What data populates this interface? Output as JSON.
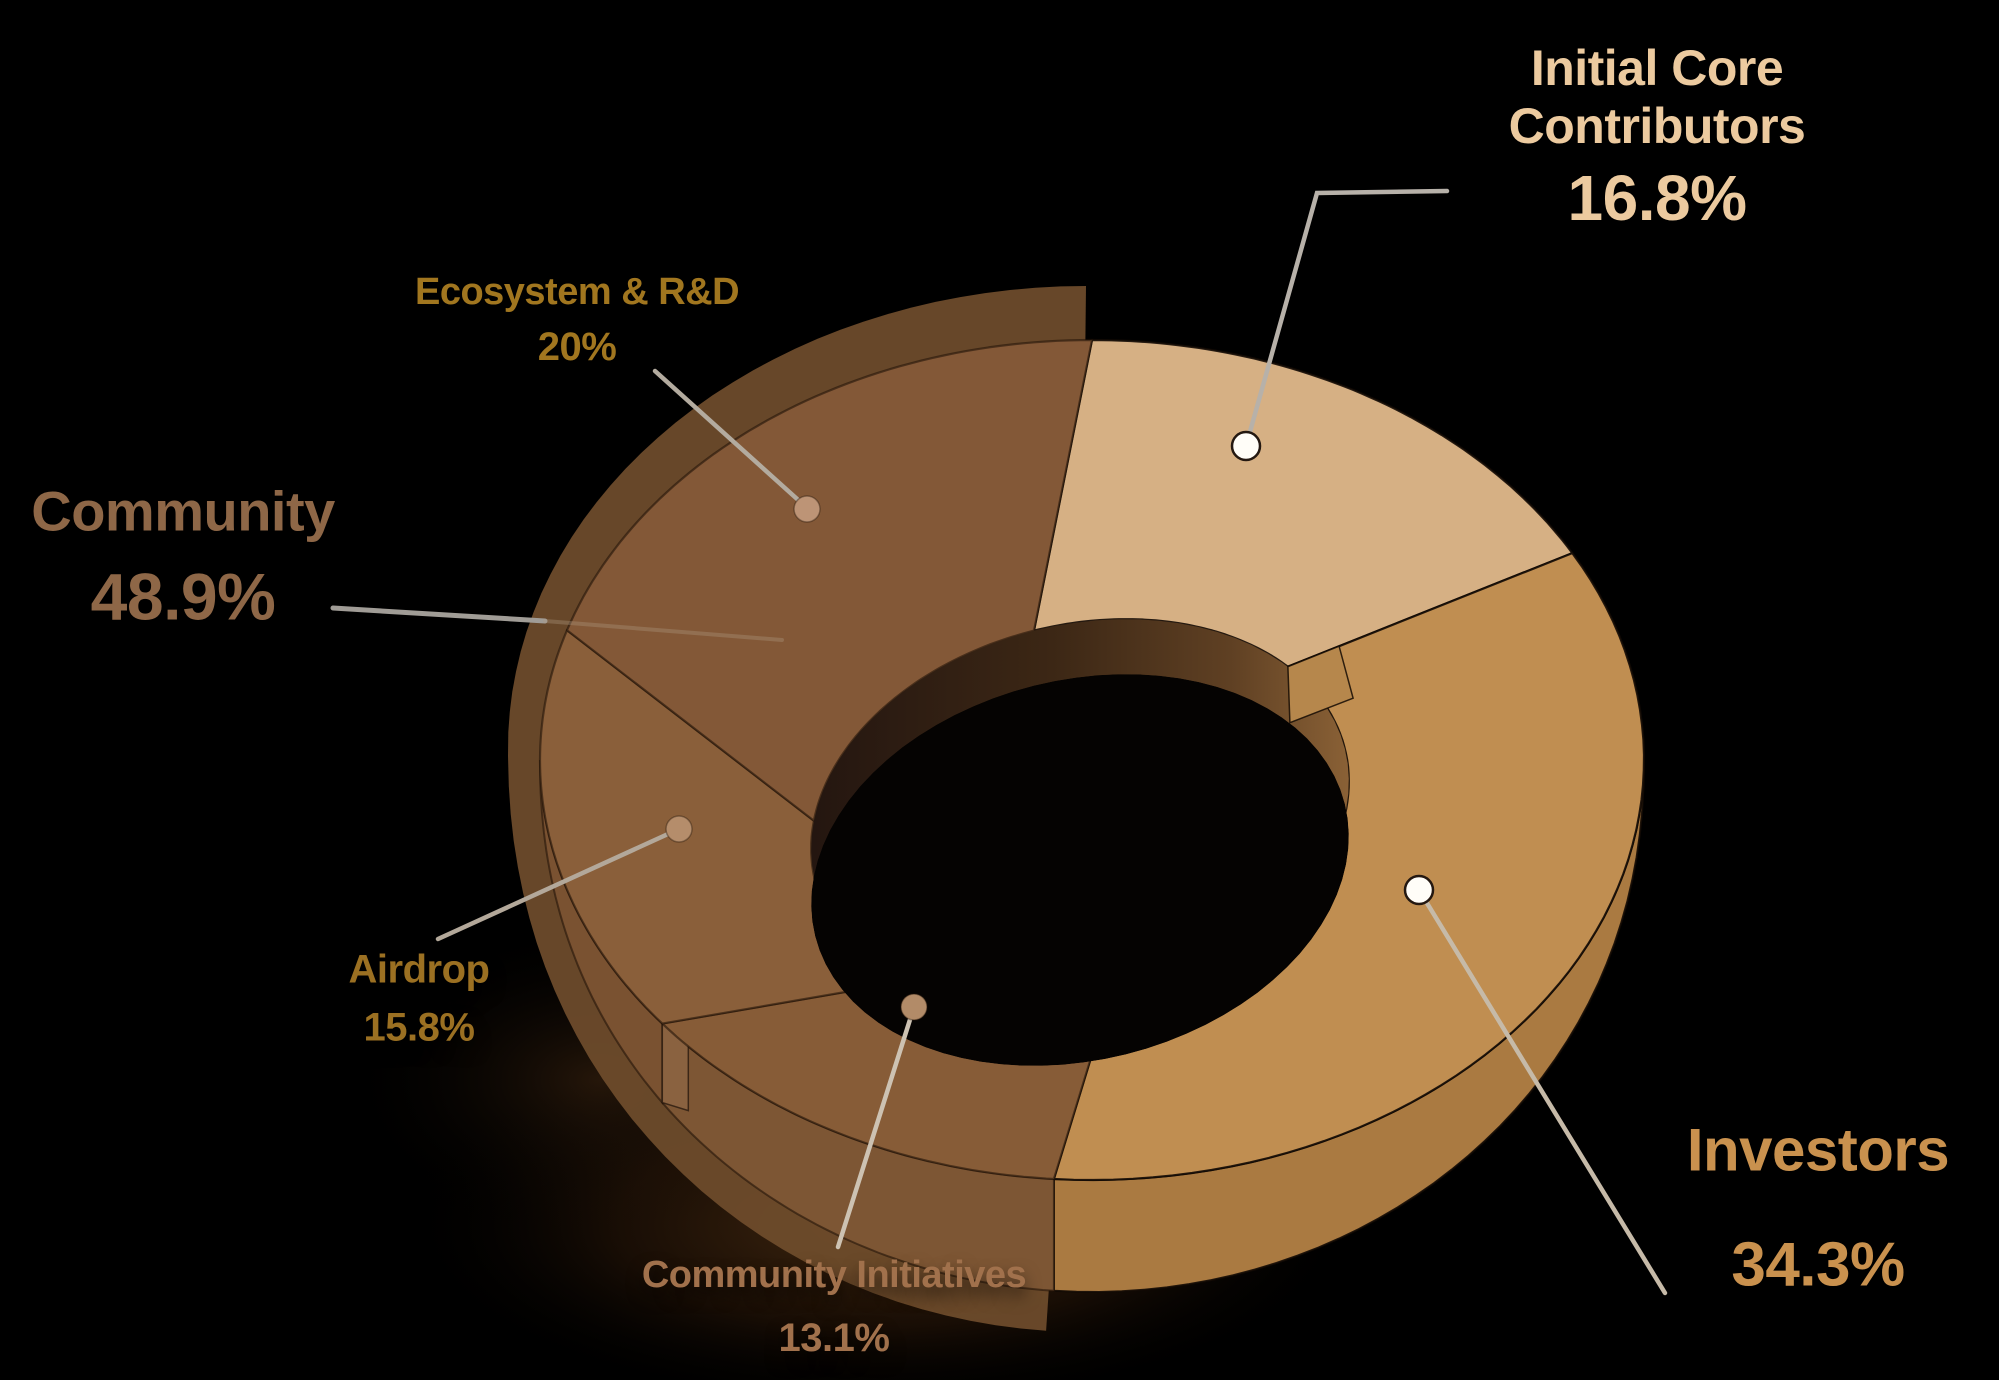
{
  "page": {
    "background": "#000000"
  },
  "chart_data": {
    "type": "pie",
    "variant": "3d-donut",
    "title": "",
    "direction": "clockwise",
    "start_angle_deg": 0,
    "background": "#000000",
    "slices": [
      {
        "label": "Initial Core Contributors",
        "value": 16.8,
        "display": "16.8%",
        "top_color": "#d6b084",
        "side_color": "#bd8d52",
        "label_color": "#ecca9f",
        "callout_dot_color": "#fffdf8",
        "shaded": false
      },
      {
        "label": "Investors",
        "value": 34.3,
        "display": "34.3%",
        "top_color": "#c08e51",
        "side_color": "#aa7a41",
        "label_color": "#c9914e",
        "callout_dot_color": "#fffdf8",
        "shaded": false
      },
      {
        "label": "Community Initiatives",
        "value": 13.1,
        "display": "13.1%",
        "top_color": "#875c37",
        "side_color": "#7d5634",
        "label_color": "#a1714c",
        "callout_dot_color": "#b28b68",
        "shaded": true
      },
      {
        "label": "Airdrop",
        "value": 15.8,
        "display": "15.8%",
        "top_color": "#8a5f3a",
        "side_color": "#7a5231",
        "label_color": "#9b7022",
        "callout_dot_color": "#b58d6b",
        "shaded": true
      },
      {
        "label": "Ecosystem & R&D",
        "value": 20,
        "display": "20%",
        "top_color": "#835837",
        "side_color": "#7a5232",
        "label_color": "#a1761f",
        "callout_dot_color": "#bd9476",
        "shaded": true
      }
    ],
    "group": {
      "label": "Community",
      "value": 48.9,
      "display": "48.9%",
      "label_color": "#8e6747",
      "includes": [
        "Community Initiatives",
        "Airdrop",
        "Ecosystem & R&D"
      ]
    }
  }
}
